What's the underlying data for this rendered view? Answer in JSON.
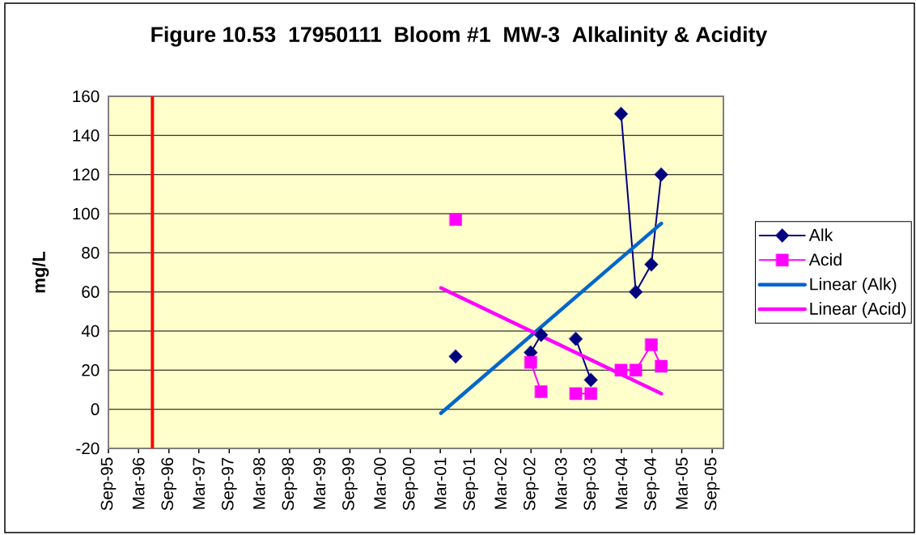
{
  "chart_data": {
    "type": "line",
    "title": "Figure 10.53  17950111  Bloom #1  MW-3  Alkalinity & Acidity",
    "ylabel": "mg/L",
    "x": [
      "2001-06-02",
      "2002-01-15",
      "2002-08-30",
      "2002-11-01",
      "2003-03-01",
      "2003-05-30",
      "2003-08-29",
      "2003-11-28",
      "2004-02-28",
      "2004-05-27",
      "2004-08-29",
      "2004-10-28"
    ],
    "series": [
      {
        "name": "Alk",
        "color": "#000080",
        "marker": "diamond",
        "values": [
          27,
          null,
          29,
          38,
          null,
          36,
          15,
          null,
          151,
          60,
          74,
          120
        ]
      },
      {
        "name": "Acid",
        "color": "#ff00ff",
        "marker": "square",
        "values": [
          97,
          null,
          24,
          9,
          null,
          8,
          8,
          null,
          20,
          20,
          33,
          22
        ]
      },
      {
        "name": "Linear (Alk)",
        "color": "#0066cc",
        "marker": "none",
        "x": [
          "2001-03-05",
          "2004-10-28"
        ],
        "values": [
          -2,
          95
        ]
      },
      {
        "name": "Linear (Acid)",
        "color": "#ff00ff",
        "marker": "none",
        "x": [
          "2001-03-05",
          "2004-10-28"
        ],
        "values": [
          62,
          8
        ]
      }
    ],
    "xlim": [
      "1995-09-01",
      "2005-11-08"
    ],
    "xticks": [
      {
        "value": "1995-09-01",
        "label": "Sep-95"
      },
      {
        "value": "1996-03-01",
        "label": "Mar-96"
      },
      {
        "value": "1996-09-01",
        "label": "Sep-96"
      },
      {
        "value": "1997-03-01",
        "label": "Mar-97"
      },
      {
        "value": "1997-09-01",
        "label": "Sep-97"
      },
      {
        "value": "1998-03-01",
        "label": "Mar-98"
      },
      {
        "value": "1998-09-01",
        "label": "Sep-98"
      },
      {
        "value": "1999-03-01",
        "label": "Mar-99"
      },
      {
        "value": "1999-09-01",
        "label": "Sep-99"
      },
      {
        "value": "2000-03-01",
        "label": "Mar-00"
      },
      {
        "value": "2000-09-01",
        "label": "Sep-00"
      },
      {
        "value": "2001-03-01",
        "label": "Mar-01"
      },
      {
        "value": "2001-09-01",
        "label": "Sep-01"
      },
      {
        "value": "2002-03-01",
        "label": "Mar-02"
      },
      {
        "value": "2002-09-01",
        "label": "Sep-02"
      },
      {
        "value": "2003-03-01",
        "label": "Mar-03"
      },
      {
        "value": "2003-09-01",
        "label": "Sep-03"
      },
      {
        "value": "2004-03-01",
        "label": "Mar-04"
      },
      {
        "value": "2004-09-01",
        "label": "Sep-04"
      },
      {
        "value": "2005-03-01",
        "label": "Mar-05"
      },
      {
        "value": "2005-09-01",
        "label": "Sep-05"
      }
    ],
    "ylim": [
      -20,
      160
    ],
    "yticks": [
      -20,
      0,
      20,
      40,
      60,
      80,
      100,
      120,
      140,
      160
    ],
    "grid": "y",
    "legend": "right",
    "ref_lines": [
      {
        "axis": "x",
        "value": "1996-05-24",
        "color": "#ff0000"
      }
    ]
  }
}
